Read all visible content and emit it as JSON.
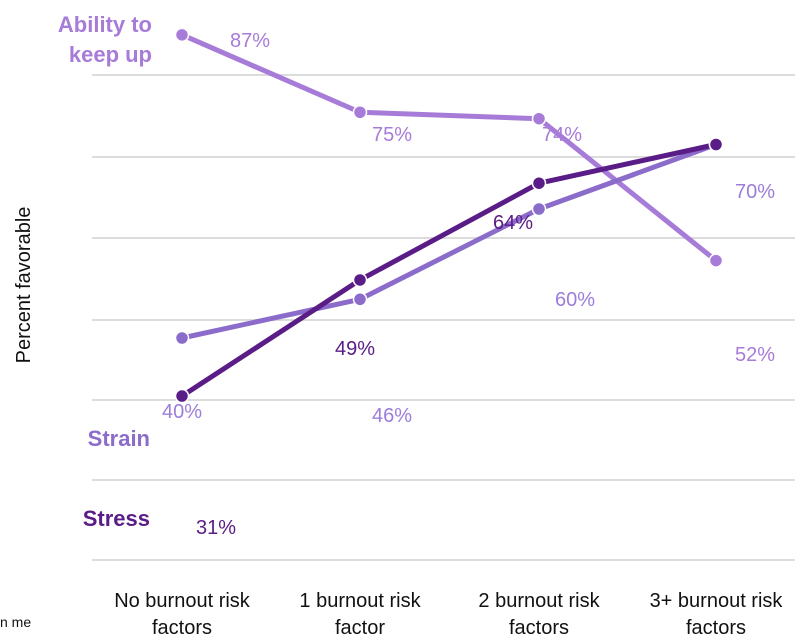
{
  "chart_data": {
    "type": "line",
    "ylabel": "Percent favorable",
    "categories": [
      [
        "No burnout risk",
        "factors"
      ],
      [
        "1 burnout risk",
        "factor"
      ],
      [
        "2 burnout risk",
        "factors"
      ],
      [
        "3+ burnout risk",
        "factors"
      ]
    ],
    "ylim": [
      20,
      95
    ],
    "grid": true,
    "series": [
      {
        "name": "Ability to keep up",
        "name_lines": [
          "Ability to",
          "keep up"
        ],
        "color": "#A77BD8",
        "label_color": "#A77BD8",
        "values": [
          87,
          75,
          74,
          52
        ],
        "labels": [
          "87%",
          "75%",
          "74%",
          "52%"
        ]
      },
      {
        "name": "Strain",
        "name_lines": [
          "Strain"
        ],
        "color": "#8B6CCB",
        "label_color": "#9C7DDA",
        "values": [
          40,
          46,
          60,
          70
        ],
        "labels": [
          "40%",
          "46%",
          "60%",
          "70%"
        ]
      },
      {
        "name": "Stress",
        "name_lines": [
          "Stress"
        ],
        "color": "#5A1C86",
        "label_color": "#5A1C86",
        "values": [
          31,
          49,
          64,
          70
        ],
        "labels": [
          "31%",
          "49%",
          "64%",
          ""
        ]
      }
    ]
  },
  "stray_text": "n me"
}
